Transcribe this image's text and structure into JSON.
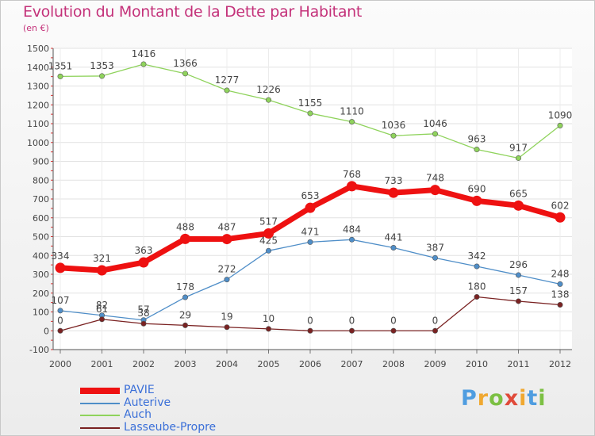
{
  "chart_data": {
    "type": "line",
    "title": "Evolution du Montant de la Dette par Habitant",
    "subtitle": "(en €)",
    "x": [
      "2000",
      "2001",
      "2002",
      "2003",
      "2004",
      "2005",
      "2006",
      "2007",
      "2008",
      "2009",
      "2010",
      "2011",
      "2012"
    ],
    "ylim": [
      -100,
      1500
    ],
    "yticks": [
      -100,
      0,
      100,
      200,
      300,
      400,
      500,
      600,
      700,
      800,
      900,
      1000,
      1100,
      1200,
      1300,
      1400,
      1500
    ],
    "grid": true,
    "legend_position": "bottom-left",
    "series": [
      {
        "name": "Auch",
        "color": "#8fd35c",
        "values": [
          1351,
          1353,
          1416,
          1366,
          1277,
          1226,
          1155,
          1110,
          1036,
          1046,
          963,
          917,
          1090
        ],
        "labels": [
          "1351",
          "1353",
          "1416",
          "1366",
          "1277",
          "1226",
          "1155",
          "1110",
          "1036",
          "1046",
          "963",
          "917",
          "1090"
        ]
      },
      {
        "name": "Auterive",
        "color": "#4f8ec8",
        "values": [
          107,
          82,
          57,
          178,
          272,
          425,
          471,
          484,
          441,
          387,
          342,
          296,
          248
        ],
        "labels": [
          "107",
          "82",
          "57",
          "178",
          "272",
          "425",
          "471",
          "484",
          "441",
          "387",
          "342",
          "296",
          "248"
        ]
      },
      {
        "name": "Lasseube-Propre",
        "color": "#7a2222",
        "values": [
          0,
          61,
          38,
          29,
          19,
          10,
          0,
          0,
          0,
          0,
          180,
          157,
          138
        ],
        "labels": [
          "0",
          "61",
          "38",
          "29",
          "19",
          "10",
          "0",
          "0",
          "0",
          "0",
          "180",
          "157",
          "138"
        ]
      },
      {
        "name": "PAVIE",
        "color": "#ee1111",
        "values": [
          334,
          321,
          363,
          488,
          487,
          517,
          653,
          768,
          733,
          748,
          690,
          665,
          602
        ],
        "labels": [
          "334",
          "321",
          "363",
          "488",
          "487",
          "517",
          "653",
          "768",
          "733",
          "748",
          "690",
          "665",
          "602"
        ]
      }
    ],
    "legend": [
      {
        "name": "PAVIE",
        "color": "#ee1111"
      },
      {
        "name": "Auterive",
        "color": "#4f8ec8"
      },
      {
        "name": "Auch",
        "color": "#8fd35c"
      },
      {
        "name": "Lasseube-Propre",
        "color": "#7a2222"
      }
    ]
  },
  "brand": {
    "letters": [
      {
        "ch": "P",
        "color": "#4f9de0"
      },
      {
        "ch": "r",
        "color": "#f0a830"
      },
      {
        "ch": "o",
        "color": "#7cc043"
      },
      {
        "ch": "x",
        "color": "#e04a3a"
      },
      {
        "ch": "i",
        "color": "#f0a830"
      },
      {
        "ch": "t",
        "color": "#4f9de0"
      },
      {
        "ch": "i",
        "color": "#7cc043"
      }
    ]
  }
}
